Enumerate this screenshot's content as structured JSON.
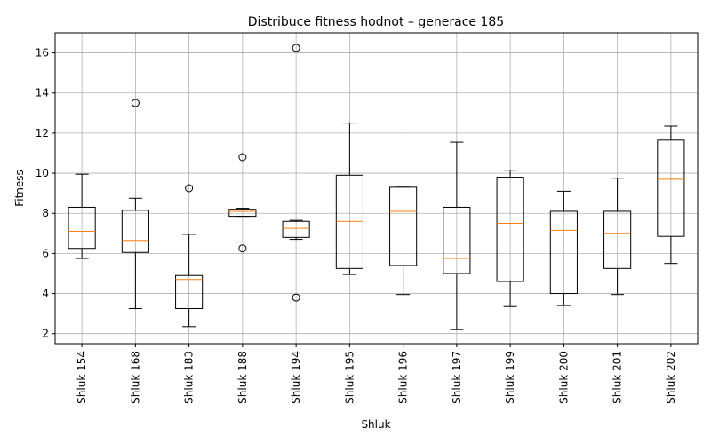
{
  "chart_data": {
    "type": "box",
    "title": "Distribuce fitness hodnot – generace 185",
    "xlabel": "Shluk",
    "ylabel": "Fitness",
    "ylim": [
      1.5,
      17
    ],
    "yticks": [
      2,
      4,
      6,
      8,
      10,
      12,
      14,
      16
    ],
    "grid": true,
    "colors": {
      "box": "#000000",
      "median": "#ff7f0e",
      "grid": "#b0b0b0"
    },
    "categories": [
      "Shluk 154",
      "Shluk 168",
      "Shluk 183",
      "Shluk 188",
      "Shluk 194",
      "Shluk 195",
      "Shluk 196",
      "Shluk 197",
      "Shluk 199",
      "Shluk 200",
      "Shluk 201",
      "Shluk 202"
    ],
    "boxes": [
      {
        "whisker_low": 5.75,
        "q1": 6.25,
        "median": 7.1,
        "q3": 8.3,
        "whisker_high": 9.95,
        "outliers": []
      },
      {
        "whisker_low": 3.25,
        "q1": 6.05,
        "median": 6.65,
        "q3": 8.15,
        "whisker_high": 8.75,
        "outliers": [
          13.5
        ]
      },
      {
        "whisker_low": 2.35,
        "q1": 3.25,
        "median": 4.7,
        "q3": 4.9,
        "whisker_high": 6.95,
        "outliers": [
          9.25
        ]
      },
      {
        "whisker_low": 7.85,
        "q1": 7.85,
        "median": 8.1,
        "q3": 8.2,
        "whisker_high": 8.25,
        "outliers": [
          10.8,
          6.25
        ]
      },
      {
        "whisker_low": 6.7,
        "q1": 6.8,
        "median": 7.25,
        "q3": 7.6,
        "whisker_high": 7.65,
        "outliers": [
          16.25,
          3.8
        ]
      },
      {
        "whisker_low": 4.95,
        "q1": 5.25,
        "median": 7.6,
        "q3": 9.9,
        "whisker_high": 12.5,
        "outliers": []
      },
      {
        "whisker_low": 3.95,
        "q1": 5.4,
        "median": 8.1,
        "q3": 9.3,
        "whisker_high": 9.35,
        "outliers": []
      },
      {
        "whisker_low": 2.2,
        "q1": 5.0,
        "median": 5.75,
        "q3": 8.3,
        "whisker_high": 11.55,
        "outliers": []
      },
      {
        "whisker_low": 3.35,
        "q1": 4.6,
        "median": 7.5,
        "q3": 9.8,
        "whisker_high": 10.15,
        "outliers": []
      },
      {
        "whisker_low": 3.4,
        "q1": 4.0,
        "median": 7.15,
        "q3": 8.1,
        "whisker_high": 9.1,
        "outliers": []
      },
      {
        "whisker_low": 3.95,
        "q1": 5.25,
        "median": 7.0,
        "q3": 8.1,
        "whisker_high": 9.75,
        "outliers": []
      },
      {
        "whisker_low": 5.5,
        "q1": 6.85,
        "median": 9.7,
        "q3": 11.65,
        "whisker_high": 12.35,
        "outliers": []
      }
    ]
  }
}
